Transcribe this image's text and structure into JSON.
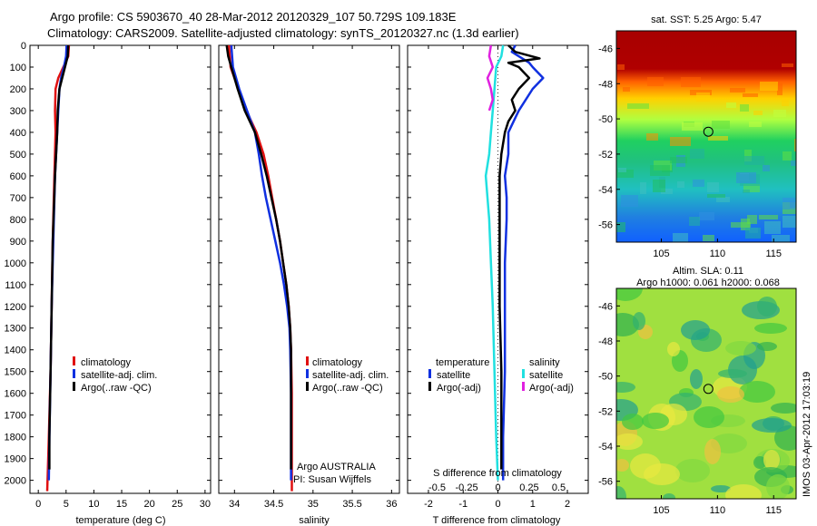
{
  "title_line1": "Argo profile: CS 5903670_40 28-Mar-2012 20120329_107 50.729S 109.183E",
  "title_line2": "Climatology: CARS2009. Satellite-adjusted climatology: synTS_20120327.nc (1.3d earlier)",
  "colors": {
    "climatology": "#e01010",
    "satellite": "#1030e0",
    "argo": "#000000",
    "sat_salinity": "#20e0e0",
    "argo_salinity": "#e020e0"
  },
  "chart_data": [
    {
      "type": "line",
      "id": "temperature",
      "xlabel": "temperature (deg C)",
      "ylabel": "",
      "xlim": [
        -1.5,
        31
      ],
      "ylim": [
        2060,
        0
      ],
      "xticks": [
        0,
        5,
        10,
        15,
        20,
        25,
        30
      ],
      "yticks": [
        0,
        100,
        200,
        300,
        400,
        500,
        600,
        700,
        800,
        900,
        1000,
        1100,
        1200,
        1300,
        1400,
        1500,
        1600,
        1700,
        1800,
        1900,
        2000
      ],
      "legend": [
        "climatology",
        "satellite-adj. clim.",
        "Argo(..raw -QC)"
      ],
      "series": [
        {
          "name": "climatology",
          "color": "#e01010",
          "y": [
            0,
            50,
            100,
            150,
            200,
            300,
            400,
            600,
            900,
            1200,
            1500,
            1800,
            2050
          ],
          "x": [
            5.5,
            5.4,
            4.5,
            3.6,
            3.1,
            3.0,
            3.1,
            2.9,
            2.6,
            2.4,
            2.2,
            1.9,
            1.6
          ]
        },
        {
          "name": "satellite-adj. clim.",
          "color": "#1030e0",
          "y": [
            0,
            50,
            100,
            150,
            200,
            300,
            400,
            600,
            900,
            1200,
            1500,
            1800,
            2000
          ],
          "x": [
            5.1,
            5.0,
            4.6,
            4.1,
            3.8,
            3.6,
            3.4,
            3.0,
            2.7,
            2.4,
            2.2,
            2.0,
            1.9
          ]
        },
        {
          "name": "Argo(..raw -QC)",
          "color": "#000000",
          "y": [
            0,
            50,
            100,
            150,
            200,
            300,
            400,
            600,
            900,
            1200,
            1500,
            1800,
            1950
          ],
          "x": [
            5.4,
            5.3,
            4.8,
            4.3,
            3.8,
            3.5,
            3.4,
            3.0,
            2.6,
            2.4,
            2.2,
            2.0,
            2.0
          ]
        }
      ]
    },
    {
      "type": "line",
      "id": "salinity",
      "xlabel": "salinity",
      "ylabel": "",
      "xlim": [
        33.8,
        36.1
      ],
      "ylim": [
        2060,
        0
      ],
      "xticks": [
        34,
        34.5,
        35,
        35.5,
        36
      ],
      "xticklabels": [
        "34",
        "34.5",
        "35",
        "35.5",
        "36"
      ],
      "legend": [
        "climatology",
        "satellite-adj. clim.",
        "Argo(..raw -QC)"
      ],
      "annotation": [
        "Argo AUSTRALIA",
        "PI: Susan Wijffels"
      ],
      "series": [
        {
          "name": "climatology",
          "color": "#e01010",
          "y": [
            0,
            50,
            100,
            200,
            300,
            400,
            500,
            600,
            700,
            800,
            900,
            1000,
            1100,
            1200,
            1300,
            1400,
            1600,
            1800,
            2050
          ],
          "x": [
            33.93,
            33.94,
            33.95,
            34.05,
            34.15,
            34.28,
            34.37,
            34.43,
            34.48,
            34.53,
            34.58,
            34.62,
            34.66,
            34.69,
            34.71,
            34.72,
            34.73,
            34.73,
            34.73
          ]
        },
        {
          "name": "satellite-adj. clim.",
          "color": "#1030e0",
          "y": [
            0,
            50,
            100,
            200,
            300,
            400,
            500,
            600,
            700,
            800,
            900,
            1000,
            1100,
            1200,
            1300,
            1400,
            1600,
            1800,
            2000
          ],
          "x": [
            33.96,
            33.97,
            33.98,
            34.06,
            34.16,
            34.26,
            34.31,
            34.35,
            34.4,
            34.46,
            34.52,
            34.58,
            34.63,
            34.67,
            34.7,
            34.71,
            34.72,
            34.72,
            34.72
          ]
        },
        {
          "name": "Argo(..raw -QC)",
          "color": "#000000",
          "y": [
            0,
            50,
            100,
            200,
            300,
            400,
            500,
            600,
            700,
            800,
            900,
            1000,
            1100,
            1200,
            1300,
            1400,
            1600,
            1800,
            1950
          ],
          "x": [
            33.9,
            33.92,
            33.96,
            34.04,
            34.13,
            34.26,
            34.34,
            34.41,
            34.47,
            34.53,
            34.58,
            34.62,
            34.66,
            34.69,
            34.71,
            34.72,
            34.72,
            34.72,
            34.72
          ]
        }
      ]
    },
    {
      "type": "line",
      "id": "difference",
      "xlabel": "T difference from climatology",
      "xlabel_top": "S difference from climatology",
      "xlim": [
        -2.6,
        2.6
      ],
      "ylim": [
        2060,
        0
      ],
      "xticks": [
        -2,
        -1,
        0,
        1,
        2
      ],
      "top_ticks": [
        {
          "value": -1.75,
          "label": "-0.5"
        },
        {
          "value": -0.9,
          "label": "-0.25"
        },
        {
          "value": 0,
          "label": "0"
        },
        {
          "value": 0.9,
          "label": "0.25"
        },
        {
          "value": 1.75,
          "label": "0.5"
        }
      ],
      "legend_headers": [
        "temperature",
        "salinity"
      ],
      "legend": [
        "satellite",
        "Argo(-adj)",
        "satellite",
        "Argo(-adj)"
      ],
      "series": [
        {
          "name": "satellite",
          "group": "temperature",
          "color": "#1030e0",
          "y": [
            0,
            30,
            60,
            80,
            100,
            150,
            200,
            300,
            400,
            500,
            600,
            700,
            800,
            1000,
            1200,
            1500,
            1800,
            2000
          ],
          "x": [
            0.5,
            0.4,
            0.7,
            0.9,
            1.0,
            1.3,
            1.0,
            0.6,
            0.3,
            0.3,
            0.2,
            0.25,
            0.25,
            0.2,
            0.2,
            0.2,
            0.15,
            0.15
          ]
        },
        {
          "name": "Argo(-adj)",
          "group": "temperature",
          "color": "#000000",
          "y": [
            0,
            30,
            60,
            80,
            100,
            150,
            200,
            250,
            300,
            350,
            400,
            500,
            600,
            700,
            800,
            1000,
            1200,
            1500,
            1800,
            1950
          ],
          "x": [
            0.3,
            0.5,
            1.2,
            0.3,
            0.6,
            0.9,
            0.6,
            0.4,
            0.5,
            0.3,
            0.2,
            0.1,
            0.05,
            0.05,
            0.05,
            0.05,
            0.05,
            0.1,
            0.1,
            0.1
          ]
        },
        {
          "name": "satellite",
          "group": "salinity",
          "color": "#20e0e0",
          "y": [
            0,
            50,
            100,
            200,
            300,
            400,
            500,
            600,
            700,
            800,
            1000,
            1200,
            1500,
            1800,
            2000
          ],
          "x": [
            0.15,
            0.1,
            -0.05,
            -0.1,
            -0.15,
            -0.2,
            -0.25,
            -0.35,
            -0.3,
            -0.25,
            -0.2,
            -0.15,
            -0.1,
            -0.05,
            0.0
          ]
        },
        {
          "name": "Argo(-adj)",
          "group": "salinity",
          "color": "#e020e0",
          "y": [
            0,
            50,
            100,
            150,
            200,
            250,
            300
          ],
          "x": [
            -0.2,
            -0.25,
            -0.15,
            -0.3,
            -0.2,
            -0.15,
            -0.25
          ]
        }
      ]
    },
    {
      "type": "heatmap",
      "id": "sst_map",
      "title": "sat. SST: 5.25  Argo: 5.47",
      "xlim": [
        101,
        117
      ],
      "ylim": [
        -57,
        -45
      ],
      "xticks": [
        105,
        110,
        115
      ],
      "yticks": [
        -46,
        -48,
        -50,
        -52,
        -54,
        -56
      ],
      "marker": {
        "lon": 109.183,
        "lat": -50.729
      }
    },
    {
      "type": "heatmap",
      "id": "sla_map",
      "title_lines": [
        "Altim. SLA: 0.11",
        "Argo h1000: 0.061 h2000: 0.068"
      ],
      "xlim": [
        101,
        117
      ],
      "ylim": [
        -57,
        -45
      ],
      "xticks": [
        105,
        110,
        115
      ],
      "yticks": [
        -46,
        -48,
        -50,
        -52,
        -54,
        -56
      ],
      "marker": {
        "lon": 109.183,
        "lat": -50.729
      }
    }
  ],
  "footer_stamp": "IMOS 03-Apr-2012 17:03:19"
}
